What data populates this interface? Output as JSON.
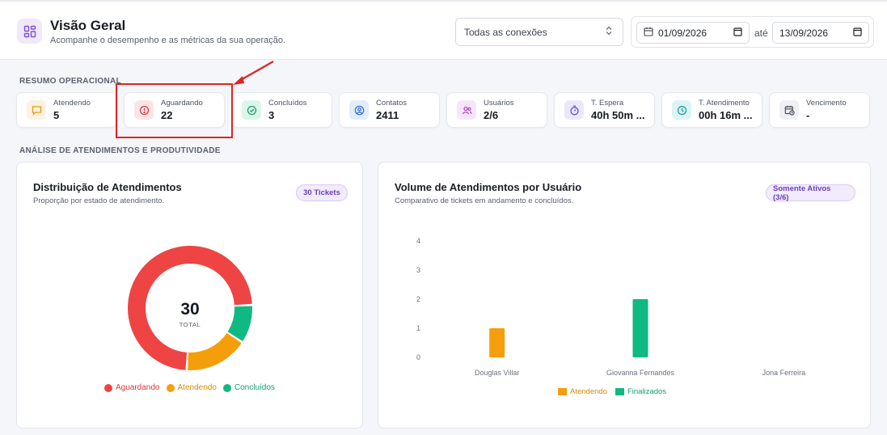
{
  "header": {
    "title": "Visão Geral",
    "subtitle": "Acompanhe o desempenho e as métricas da sua operação.",
    "connection_select": "Todas as conexões",
    "date_from": "01/09/2026",
    "date_separator": "até",
    "date_to": "13/09/2026"
  },
  "sections": {
    "summary": "RESUMO OPERACIONAL",
    "analysis": "ANÁLISE DE ATENDIMENTOS E PRODUTIVIDADE"
  },
  "kpis": [
    {
      "label": "Atendendo",
      "value": "5",
      "icon": "chat-icon",
      "bg": "#fdf1df",
      "color": "#e59a12"
    },
    {
      "label": "Aguardando",
      "value": "22",
      "icon": "alert-icon",
      "bg": "#fde5e5",
      "color": "#e03a3a"
    },
    {
      "label": "Concluídos",
      "value": "3",
      "icon": "check-circle-icon",
      "bg": "#ddf5ea",
      "color": "#16a56f"
    },
    {
      "label": "Contatos",
      "value": "2411",
      "icon": "contact-icon",
      "bg": "#e2ecfb",
      "color": "#2f6fd6"
    },
    {
      "label": "Usuários",
      "value": "2/6",
      "icon": "users-icon",
      "bg": "#f7e6fb",
      "color": "#b140c8"
    },
    {
      "label": "T. Espera",
      "value": "40h 50m ...",
      "icon": "stopwatch-icon",
      "bg": "#ece8fc",
      "color": "#6a4fd6"
    },
    {
      "label": "T. Atendimento",
      "value": "00h 16m ...",
      "icon": "clock-icon",
      "bg": "#def4f4",
      "color": "#1a9da0"
    },
    {
      "label": "Vencimento",
      "value": "-",
      "icon": "calendar-clock-icon",
      "bg": "#eef0f3",
      "color": "#4a4f5c"
    }
  ],
  "donut_card": {
    "title": "Distribuição de Atendimentos",
    "subtitle": "Proporção por estado de atendimento.",
    "badge": "30 Tickets",
    "center_value": "30",
    "center_label": "TOTAL"
  },
  "bar_card": {
    "title": "Volume de Atendimentos por Usuário",
    "subtitle": "Comparativo de tickets em andamento e concluídos.",
    "badge": "Somente Ativos (3/6)"
  },
  "colors": {
    "aguardando": "#ef4444",
    "atendendo": "#f59e0b",
    "concluidos": "#10b981",
    "accent": "#7c4ddb"
  },
  "chart_data": [
    {
      "type": "pie",
      "categories": [
        "Aguardando",
        "Atendendo",
        "Concluídos"
      ],
      "values": [
        22,
        5,
        3
      ],
      "colors": [
        "#ef4444",
        "#f59e0b",
        "#10b981"
      ],
      "legend": "bottom"
    },
    {
      "type": "bar",
      "categories": [
        "Douglas Villar",
        "Giovanna Fernandes",
        "Jona Ferreira"
      ],
      "series": [
        {
          "name": "Atendendo",
          "values": [
            1,
            0,
            0
          ],
          "color": "#f59e0b"
        },
        {
          "name": "Finalizados",
          "values": [
            0,
            2,
            0
          ],
          "color": "#10b981"
        }
      ],
      "yticks": [
        0,
        1,
        2,
        3,
        4
      ],
      "ylim": [
        0,
        4
      ],
      "legend": "bottom"
    }
  ]
}
